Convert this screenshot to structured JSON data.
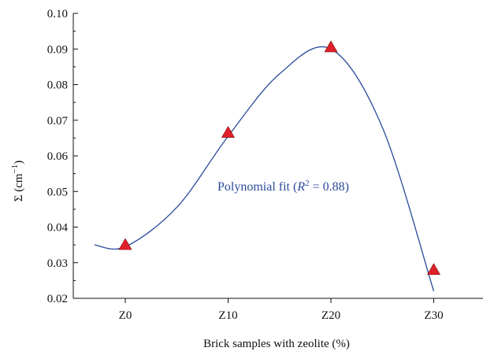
{
  "chart_data": {
    "type": "scatter",
    "xlabel": "Brick samples with zeolite (%)",
    "ylabel": "Σ (cm",
    "ylabel_sup": "−1",
    "ylabel_close": ")",
    "categories": [
      "Z0",
      "Z10",
      "Z20",
      "Z30"
    ],
    "x": [
      0,
      10,
      20,
      30
    ],
    "values": [
      0.035,
      0.0665,
      0.0905,
      0.028
    ],
    "ylim": [
      0.02,
      0.1
    ],
    "xlim": [
      -5,
      35
    ],
    "yticks": [
      "0.10",
      "0.09",
      "0.08",
      "0.07",
      "0.06",
      "0.05",
      "0.04",
      "0.03",
      "0.02"
    ],
    "fit": {
      "label_prefix": "Polynomial fit (",
      "label_r": "R",
      "label_sup": "2",
      "label_suffix": " = 0.88)",
      "points": [
        [
          -3,
          0.035
        ],
        [
          0,
          0.0345
        ],
        [
          5,
          0.0455
        ],
        [
          10,
          0.0655
        ],
        [
          15,
          0.083
        ],
        [
          20,
          0.09
        ],
        [
          25,
          0.068
        ],
        [
          30,
          0.022
        ]
      ]
    },
    "marker_color": "#e0202a",
    "fit_color": "#2b4a9b",
    "grid": false
  }
}
